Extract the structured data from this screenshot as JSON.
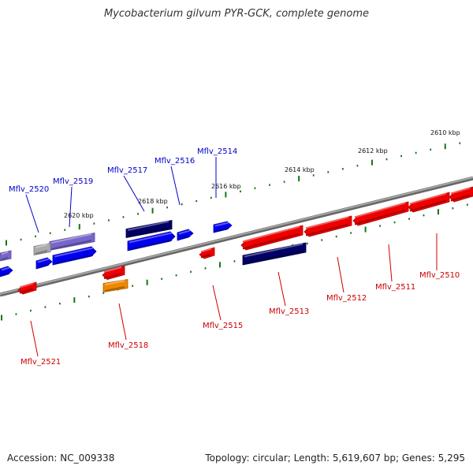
{
  "title": "Mycobacterium gilvum PYR-GCK, complete genome",
  "footer": {
    "accession": "Accession: NC_009338",
    "summary": "Topology: circular; Length: 5,619,607 bp; Genes: 5,295"
  },
  "scale_labels": [
    {
      "text": "2610 kbp",
      "kbp": 2610
    },
    {
      "text": "2612 kbp",
      "kbp": 2612
    },
    {
      "text": "2614 kbp",
      "kbp": 2614
    },
    {
      "text": "2616 kbp",
      "kbp": 2616
    },
    {
      "text": "2618 kbp",
      "kbp": 2618
    },
    {
      "text": "2620 kbp",
      "kbp": 2620
    }
  ],
  "genes": [
    {
      "label": "Mflv_2510",
      "strand": "lower"
    },
    {
      "label": "Mflv_2511",
      "strand": "lower"
    },
    {
      "label": "Mflv_2512",
      "strand": "lower"
    },
    {
      "label": "Mflv_2513",
      "strand": "lower"
    },
    {
      "label": "Mflv_2514",
      "strand": "upper"
    },
    {
      "label": "Mflv_2515",
      "strand": "lower"
    },
    {
      "label": "Mflv_2516",
      "strand": "upper"
    },
    {
      "label": "Mflv_2517",
      "strand": "upper"
    },
    {
      "label": "Mflv_2518",
      "strand": "lower"
    },
    {
      "label": "Mflv_2519",
      "strand": "upper"
    },
    {
      "label": "Mflv_2520",
      "strand": "upper"
    },
    {
      "label": "Mflv_2521",
      "strand": "lower"
    }
  ],
  "colors": {
    "forward_gene": "#0000ee",
    "reverse_gene": "#ee0000",
    "upper_label": "#0000cc",
    "lower_label": "#cc0000",
    "dark_navy": "#000066",
    "lavender": "#7766cc",
    "grey": "#aaaaaa",
    "orange": "#ee8800",
    "backbone": "#888888",
    "tick": "#117711"
  }
}
